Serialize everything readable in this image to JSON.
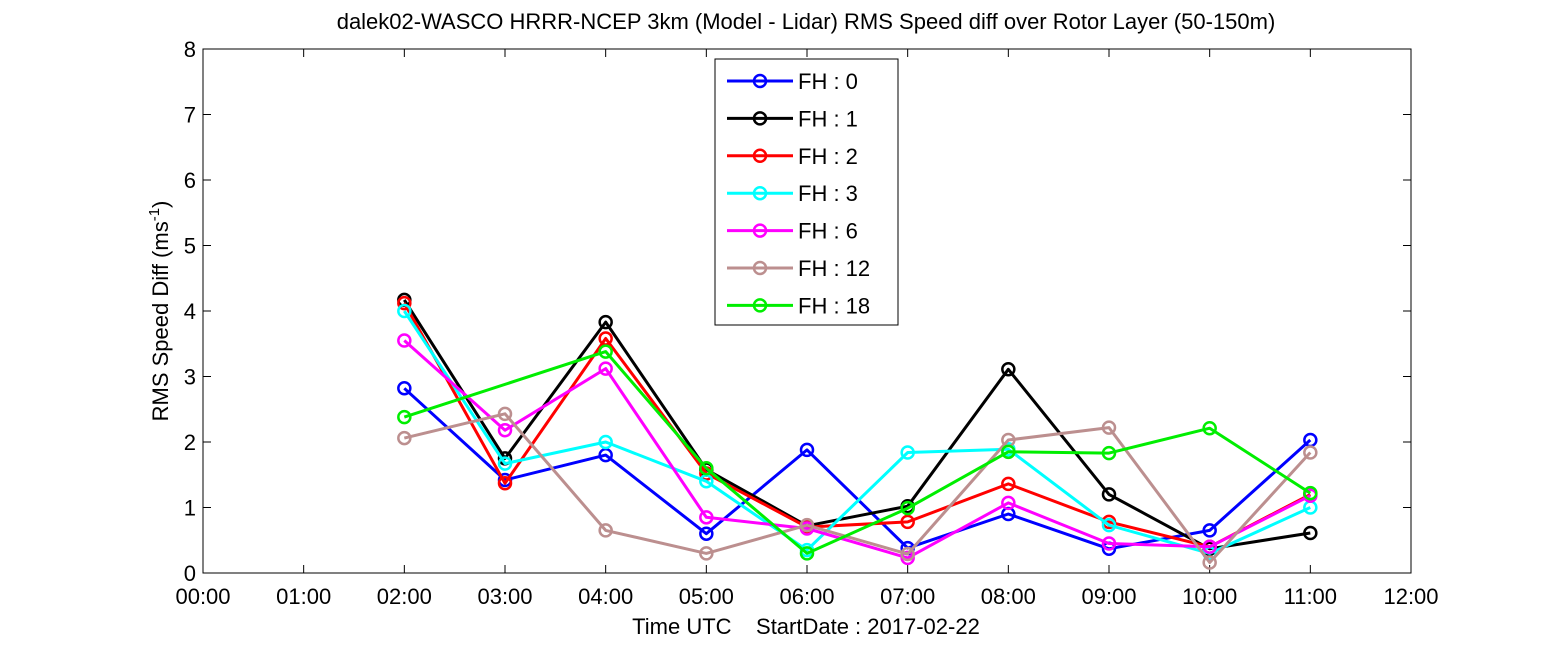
{
  "chart_data": {
    "type": "line",
    "title": "dalek02-WASCO HRRR-NCEP 3km (Model - Lidar) RMS Speed diff over Rotor Layer (50-150m)",
    "xlabel": "Time UTC    StartDate : 2017-02-22",
    "ylabel": "RMS Speed Diff (ms",
    "ylabel_sup": "-1",
    "ylabel_end": ")",
    "xlim": [
      0,
      12
    ],
    "ylim": [
      0,
      8
    ],
    "xtick_labels": [
      "00:00",
      "01:00",
      "02:00",
      "03:00",
      "04:00",
      "05:00",
      "06:00",
      "07:00",
      "08:00",
      "09:00",
      "10:00",
      "11:00",
      "12:00"
    ],
    "ytick_labels": [
      "0",
      "1",
      "2",
      "3",
      "4",
      "5",
      "6",
      "7",
      "8"
    ],
    "grid": false,
    "legend_position": "top-center",
    "series": [
      {
        "name": "FH : 0",
        "color": "#0000ff",
        "x": [
          2,
          3,
          4,
          5,
          6,
          7,
          8,
          9,
          10,
          11
        ],
        "y": [
          2.82,
          1.42,
          1.8,
          0.6,
          1.88,
          0.38,
          0.9,
          0.37,
          0.65,
          2.03
        ]
      },
      {
        "name": "FH : 1",
        "color": "#000000",
        "x": [
          2,
          3,
          4,
          5,
          6,
          7,
          8,
          9,
          10,
          11
        ],
        "y": [
          4.17,
          1.75,
          3.83,
          1.58,
          0.72,
          1.02,
          3.11,
          1.2,
          0.37,
          0.61
        ]
      },
      {
        "name": "FH : 2",
        "color": "#ff0000",
        "x": [
          2,
          3,
          4,
          5,
          6,
          7,
          8,
          9,
          10,
          11
        ],
        "y": [
          4.12,
          1.37,
          3.58,
          1.52,
          0.7,
          0.78,
          1.36,
          0.78,
          0.4,
          1.2
        ]
      },
      {
        "name": "FH : 3",
        "color": "#00ffff",
        "x": [
          2,
          3,
          4,
          5,
          6,
          7,
          8,
          9,
          10,
          11
        ],
        "y": [
          4.0,
          1.67,
          2.0,
          1.4,
          0.35,
          1.84,
          1.89,
          0.73,
          0.3,
          1.0
        ]
      },
      {
        "name": "FH : 6",
        "color": "#ff00ff",
        "x": [
          2,
          3,
          4,
          5,
          6,
          7,
          8,
          9,
          10,
          11
        ],
        "y": [
          3.55,
          2.18,
          3.12,
          0.85,
          0.68,
          0.23,
          1.07,
          0.45,
          0.4,
          1.18
        ]
      },
      {
        "name": "FH : 12",
        "color": "#bc8f8f",
        "x": [
          2,
          3,
          4,
          5,
          6,
          7,
          8,
          9,
          10,
          11
        ],
        "y": [
          2.06,
          2.43,
          0.65,
          0.3,
          0.73,
          0.29,
          2.03,
          2.22,
          0.16,
          1.84
        ]
      },
      {
        "name": "FH : 18",
        "color": "#00ee00",
        "x": [
          2,
          4,
          5,
          6,
          7,
          8,
          9,
          10,
          11
        ],
        "y": [
          2.38,
          3.38,
          1.6,
          0.3,
          0.99,
          1.85,
          1.83,
          2.21,
          1.22
        ]
      }
    ]
  }
}
